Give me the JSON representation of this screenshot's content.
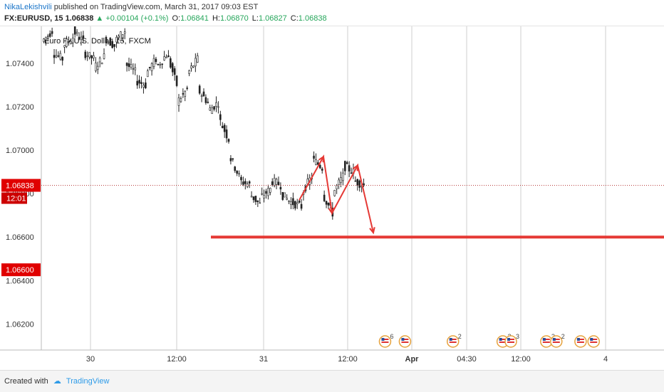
{
  "header": {
    "author": "NikaLekishvili",
    "published_text": "published on TradingView.com, March 31, 2017 09:03 EST",
    "symbol": "FX:EURUSD, 15",
    "last_price": "1.06838",
    "change": "▲ +0.00104 (+0.1%)",
    "open_label": "O:",
    "open": "1.06841",
    "high_label": "H:",
    "high": "1.06870",
    "low_label": "L:",
    "low": "1.06827",
    "close_label": "C:",
    "close": "1.06838"
  },
  "footer": {
    "created_with": "Created with",
    "brand": "TradingView"
  },
  "colors": {
    "up_arrow": "#26a65b",
    "annotation": "#e53935",
    "price_tag": "#e00000",
    "candle": "#222222",
    "grid": "#cfcfcf"
  },
  "chart_data": {
    "type": "candlestick",
    "title": "Euro Fx/U.S. Dollar, 15, FXCM",
    "ylim": [
      1.0608,
      1.0757
    ],
    "y_ticks": [
      "1.07400",
      "1.07200",
      "1.07000",
      "1.06800",
      "1.06600",
      "1.06400",
      "1.06200"
    ],
    "x_ticks": [
      "30",
      "12:00",
      "31",
      "12:00",
      "Apr",
      "04:30",
      "12:00",
      "4"
    ],
    "last_price_tag": {
      "value": 1.06838,
      "label": "1.06838",
      "countdown": "12:01"
    },
    "level_tag": {
      "value": 1.066,
      "label": "1.06600"
    },
    "horizontal_line": {
      "value": 1.066,
      "from": "Mar 31 03:00"
    },
    "price_path": [
      [
        1.075,
        1.0755
      ],
      [
        1.0745,
        1.0742
      ],
      [
        1.0748,
        1.0752
      ],
      [
        1.0755,
        1.075
      ],
      [
        1.0745,
        1.0742
      ],
      [
        1.0738,
        1.0743
      ],
      [
        1.0752,
        1.0748
      ],
      [
        1.075,
        1.0755
      ],
      [
        1.074,
        1.0736
      ],
      [
        1.0732,
        1.073
      ],
      [
        1.0735,
        1.0742
      ],
      [
        1.0738,
        1.0744
      ],
      [
        1.0745,
        1.073
      ],
      [
        1.0722,
        1.0728
      ],
      [
        1.0735,
        1.0742
      ],
      [
        1.0728,
        1.0722
      ],
      [
        1.0718,
        1.0722
      ],
      [
        1.0715,
        1.0705
      ],
      [
        1.0698,
        1.0688
      ],
      [
        1.0686,
        1.0684
      ],
      [
        1.068,
        1.0675
      ],
      [
        1.0678,
        1.0682
      ],
      [
        1.0686,
        1.0684
      ],
      [
        1.068,
        1.0676
      ],
      [
        1.0676,
        1.0674
      ],
      [
        1.068,
        1.0688
      ],
      [
        1.0696,
        1.0692
      ],
      [
        1.068,
        1.0671
      ],
      [
        1.068,
        1.0688
      ],
      [
        1.0693,
        1.069
      ],
      [
        1.0686,
        1.0684
      ]
    ],
    "annotation_path": [
      1.0677,
      1.0697,
      1.0671,
      1.0693,
      1.0662
    ],
    "events": [
      {
        "at": 0.552,
        "count": "6"
      },
      {
        "at": 0.584,
        "count": ""
      },
      {
        "at": 0.661,
        "count": "2"
      },
      {
        "at": 0.741,
        "count": "3"
      },
      {
        "at": 0.754,
        "count": "3"
      },
      {
        "at": 0.811,
        "count": "2"
      },
      {
        "at": 0.827,
        "count": "2"
      },
      {
        "at": 0.866,
        "count": ""
      },
      {
        "at": 0.887,
        "count": ""
      }
    ]
  }
}
